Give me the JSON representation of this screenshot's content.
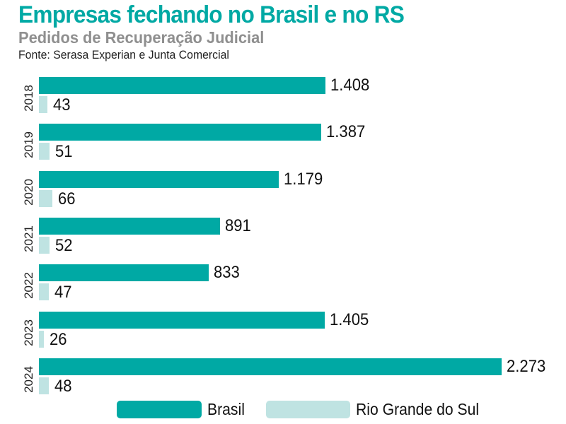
{
  "header": {
    "title": "Empresas fechando no Brasil e no RS",
    "subtitle": "Pedidos de Recuperação Judicial",
    "source": "Fonte: Serasa Experian e Junta Comercial"
  },
  "colors": {
    "brasil": "#00a9a4",
    "rs": "#bfe3e2",
    "title": "#00a9a4",
    "subtitle": "#8f8f8f"
  },
  "legend": {
    "brasil": "Brasil",
    "rs": "Rio Grande do Sul"
  },
  "rows": [
    {
      "year": "2018",
      "brasil": 1408,
      "brasil_label": "1.408",
      "rs": 43,
      "rs_label": "43"
    },
    {
      "year": "2019",
      "brasil": 1387,
      "brasil_label": "1.387",
      "rs": 51,
      "rs_label": "51"
    },
    {
      "year": "2020",
      "brasil": 1179,
      "brasil_label": "1.179",
      "rs": 66,
      "rs_label": "66"
    },
    {
      "year": "2021",
      "brasil": 891,
      "brasil_label": "891",
      "rs": 52,
      "rs_label": "52"
    },
    {
      "year": "2022",
      "brasil": 833,
      "brasil_label": "833",
      "rs": 47,
      "rs_label": "47"
    },
    {
      "year": "2023",
      "brasil": 1405,
      "brasil_label": "1.405",
      "rs": 26,
      "rs_label": "26"
    },
    {
      "year": "2024",
      "brasil": 2273,
      "brasil_label": "2.273",
      "rs": 48,
      "rs_label": "48"
    }
  ],
  "chart_data": {
    "type": "bar",
    "orientation": "horizontal",
    "title": "Empresas fechando no Brasil e no RS",
    "subtitle": "Pedidos de Recuperação Judicial",
    "source": "Fonte: Serasa Experian e Junta Comercial",
    "categories": [
      "2018",
      "2019",
      "2020",
      "2021",
      "2022",
      "2023",
      "2024"
    ],
    "series": [
      {
        "name": "Brasil",
        "color": "#00a9a4",
        "values": [
          1408,
          1387,
          1179,
          891,
          833,
          1405,
          2273
        ]
      },
      {
        "name": "Rio Grande do Sul",
        "color": "#bfe3e2",
        "values": [
          43,
          51,
          66,
          52,
          47,
          26,
          48
        ]
      }
    ],
    "xlabel": "",
    "ylabel": "",
    "grid": false,
    "data_labels": true,
    "legend_position": "bottom"
  }
}
